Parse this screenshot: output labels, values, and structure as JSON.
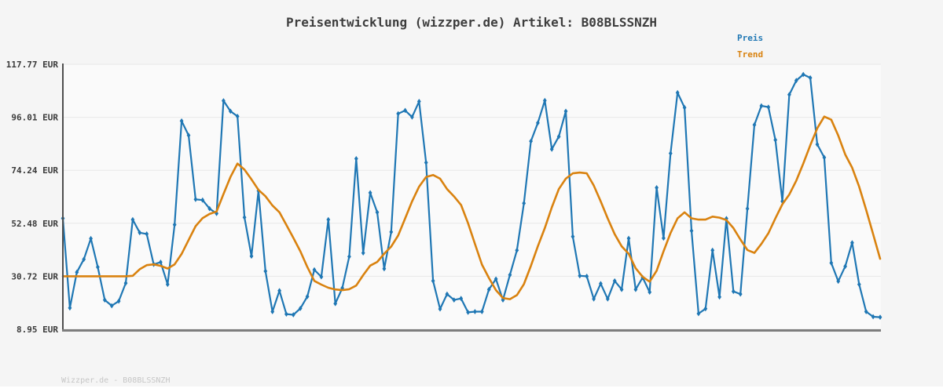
{
  "title": "Preisentwicklung (wizzper.de) Artikel: B08BLSSNZH",
  "footer": "Wizzper.de - B08BLSSNZH",
  "legend": {
    "items": [
      {
        "label": "Preis",
        "color": "#1f77b4"
      },
      {
        "label": "Trend",
        "color": "#d9820f"
      }
    ]
  },
  "colors": {
    "page_bg": "#f5f5f5",
    "plot_bg": "#fafafa",
    "grid": "#e7e7e7",
    "axis_left": "#4f4f4f",
    "axis_bottom": "#7d7d7d",
    "price": "#1f77b4",
    "trend": "#d9820f",
    "title_text": "#3d3d3d",
    "tick_text": "#3a3a3a",
    "footer_text": "#c6c6c6"
  },
  "chart_data": {
    "type": "line",
    "title": "Preisentwicklung (wizzper.de) Artikel: B08BLSSNZH",
    "xlabel": "",
    "ylabel": "EUR",
    "grid": true,
    "legend_position": "top-right-outside",
    "ylim": [
      8.95,
      117.77
    ],
    "yticks": [
      {
        "label": "117.77 EUR",
        "value": 117.77
      },
      {
        "label": "96.01 EUR",
        "value": 96.01
      },
      {
        "label": "74.24 EUR",
        "value": 74.24
      },
      {
        "label": "52.48 EUR",
        "value": 52.48
      },
      {
        "label": "30.72 EUR",
        "value": 30.72
      },
      {
        "label": "8.95 EUR",
        "value": 8.95
      }
    ],
    "x_axis": {
      "tick_labels_visible": false,
      "n_points": 118
    },
    "series": [
      {
        "name": "Preis",
        "color": "#1f77b4",
        "line_width": 2.2,
        "marker": "thin-diamond",
        "values": [
          54.5,
          17.7,
          32.4,
          37.7,
          46.2,
          34.5,
          21.0,
          18.6,
          20.5,
          27.9,
          54.0,
          48.6,
          48.1,
          35.6,
          36.5,
          27.4,
          51.9,
          94.5,
          88.6,
          62.3,
          62.0,
          58.5,
          56.5,
          102.8,
          98.5,
          96.4,
          54.9,
          39.0,
          65.8,
          32.8,
          16.2,
          24.8,
          15.2,
          14.9,
          17.5,
          22.4,
          33.4,
          30.5,
          54.0,
          19.5,
          25.9,
          38.8,
          79.0,
          40.3,
          65.0,
          57.0,
          33.8,
          48.9,
          97.5,
          98.8,
          96.1,
          102.5,
          77.4,
          28.8,
          17.3,
          23.4,
          21.0,
          21.6,
          15.9,
          16.2,
          16.2,
          25.3,
          29.6,
          21.0,
          31.3,
          41.4,
          60.7,
          86.2,
          93.7,
          102.9,
          82.9,
          88.1,
          98.5,
          47.0,
          30.9,
          30.7,
          21.4,
          27.7,
          21.4,
          28.8,
          25.3,
          46.3,
          25.3,
          30.2,
          24.2,
          67.1,
          46.4,
          81.2,
          106.1,
          100.0,
          49.4,
          15.4,
          17.4,
          41.4,
          22.2,
          54.4,
          24.5,
          23.4,
          58.5,
          92.9,
          100.7,
          100.2,
          86.7,
          61.5,
          105.3,
          111.1,
          113.6,
          112.2,
          84.9,
          79.5,
          36.2,
          28.7,
          34.8,
          44.5,
          27.4,
          16.2,
          14.1,
          13.9
        ]
      },
      {
        "name": "Trend",
        "color": "#d9820f",
        "line_width": 2.6,
        "marker": "none",
        "values": [
          30.72,
          30.72,
          30.72,
          30.72,
          30.72,
          30.72,
          30.72,
          30.72,
          30.72,
          30.72,
          30.9,
          33.6,
          35.3,
          35.6,
          35.0,
          33.9,
          35.6,
          39.9,
          45.6,
          51.3,
          54.6,
          56.3,
          57.3,
          64.5,
          71.5,
          77.0,
          74.5,
          70.5,
          66.2,
          63.6,
          59.8,
          57.0,
          51.8,
          46.5,
          41.0,
          34.5,
          28.8,
          27.3,
          26.0,
          25.3,
          25.0,
          25.4,
          26.9,
          31.2,
          35.1,
          36.6,
          40.0,
          42.9,
          47.5,
          54.5,
          61.5,
          67.5,
          71.5,
          72.3,
          70.8,
          66.5,
          63.5,
          60.0,
          52.5,
          44.0,
          35.5,
          30.0,
          25.0,
          21.8,
          21.3,
          23.0,
          27.5,
          35.0,
          43.0,
          50.5,
          59.0,
          66.5,
          70.8,
          73.0,
          73.3,
          73.0,
          68.0,
          61.5,
          54.5,
          48.0,
          43.0,
          40.0,
          34.0,
          30.5,
          28.5,
          33.0,
          41.0,
          48.5,
          54.5,
          57.0,
          54.5,
          54.0,
          54.0,
          55.2,
          54.8,
          53.8,
          50.5,
          45.8,
          41.5,
          40.3,
          44.0,
          48.4,
          54.5,
          60.3,
          64.3,
          70.0,
          77.0,
          84.5,
          91.5,
          96.3,
          95.0,
          88.5,
          80.7,
          75.3,
          67.5,
          58.0,
          48.0,
          37.9
        ]
      }
    ]
  }
}
